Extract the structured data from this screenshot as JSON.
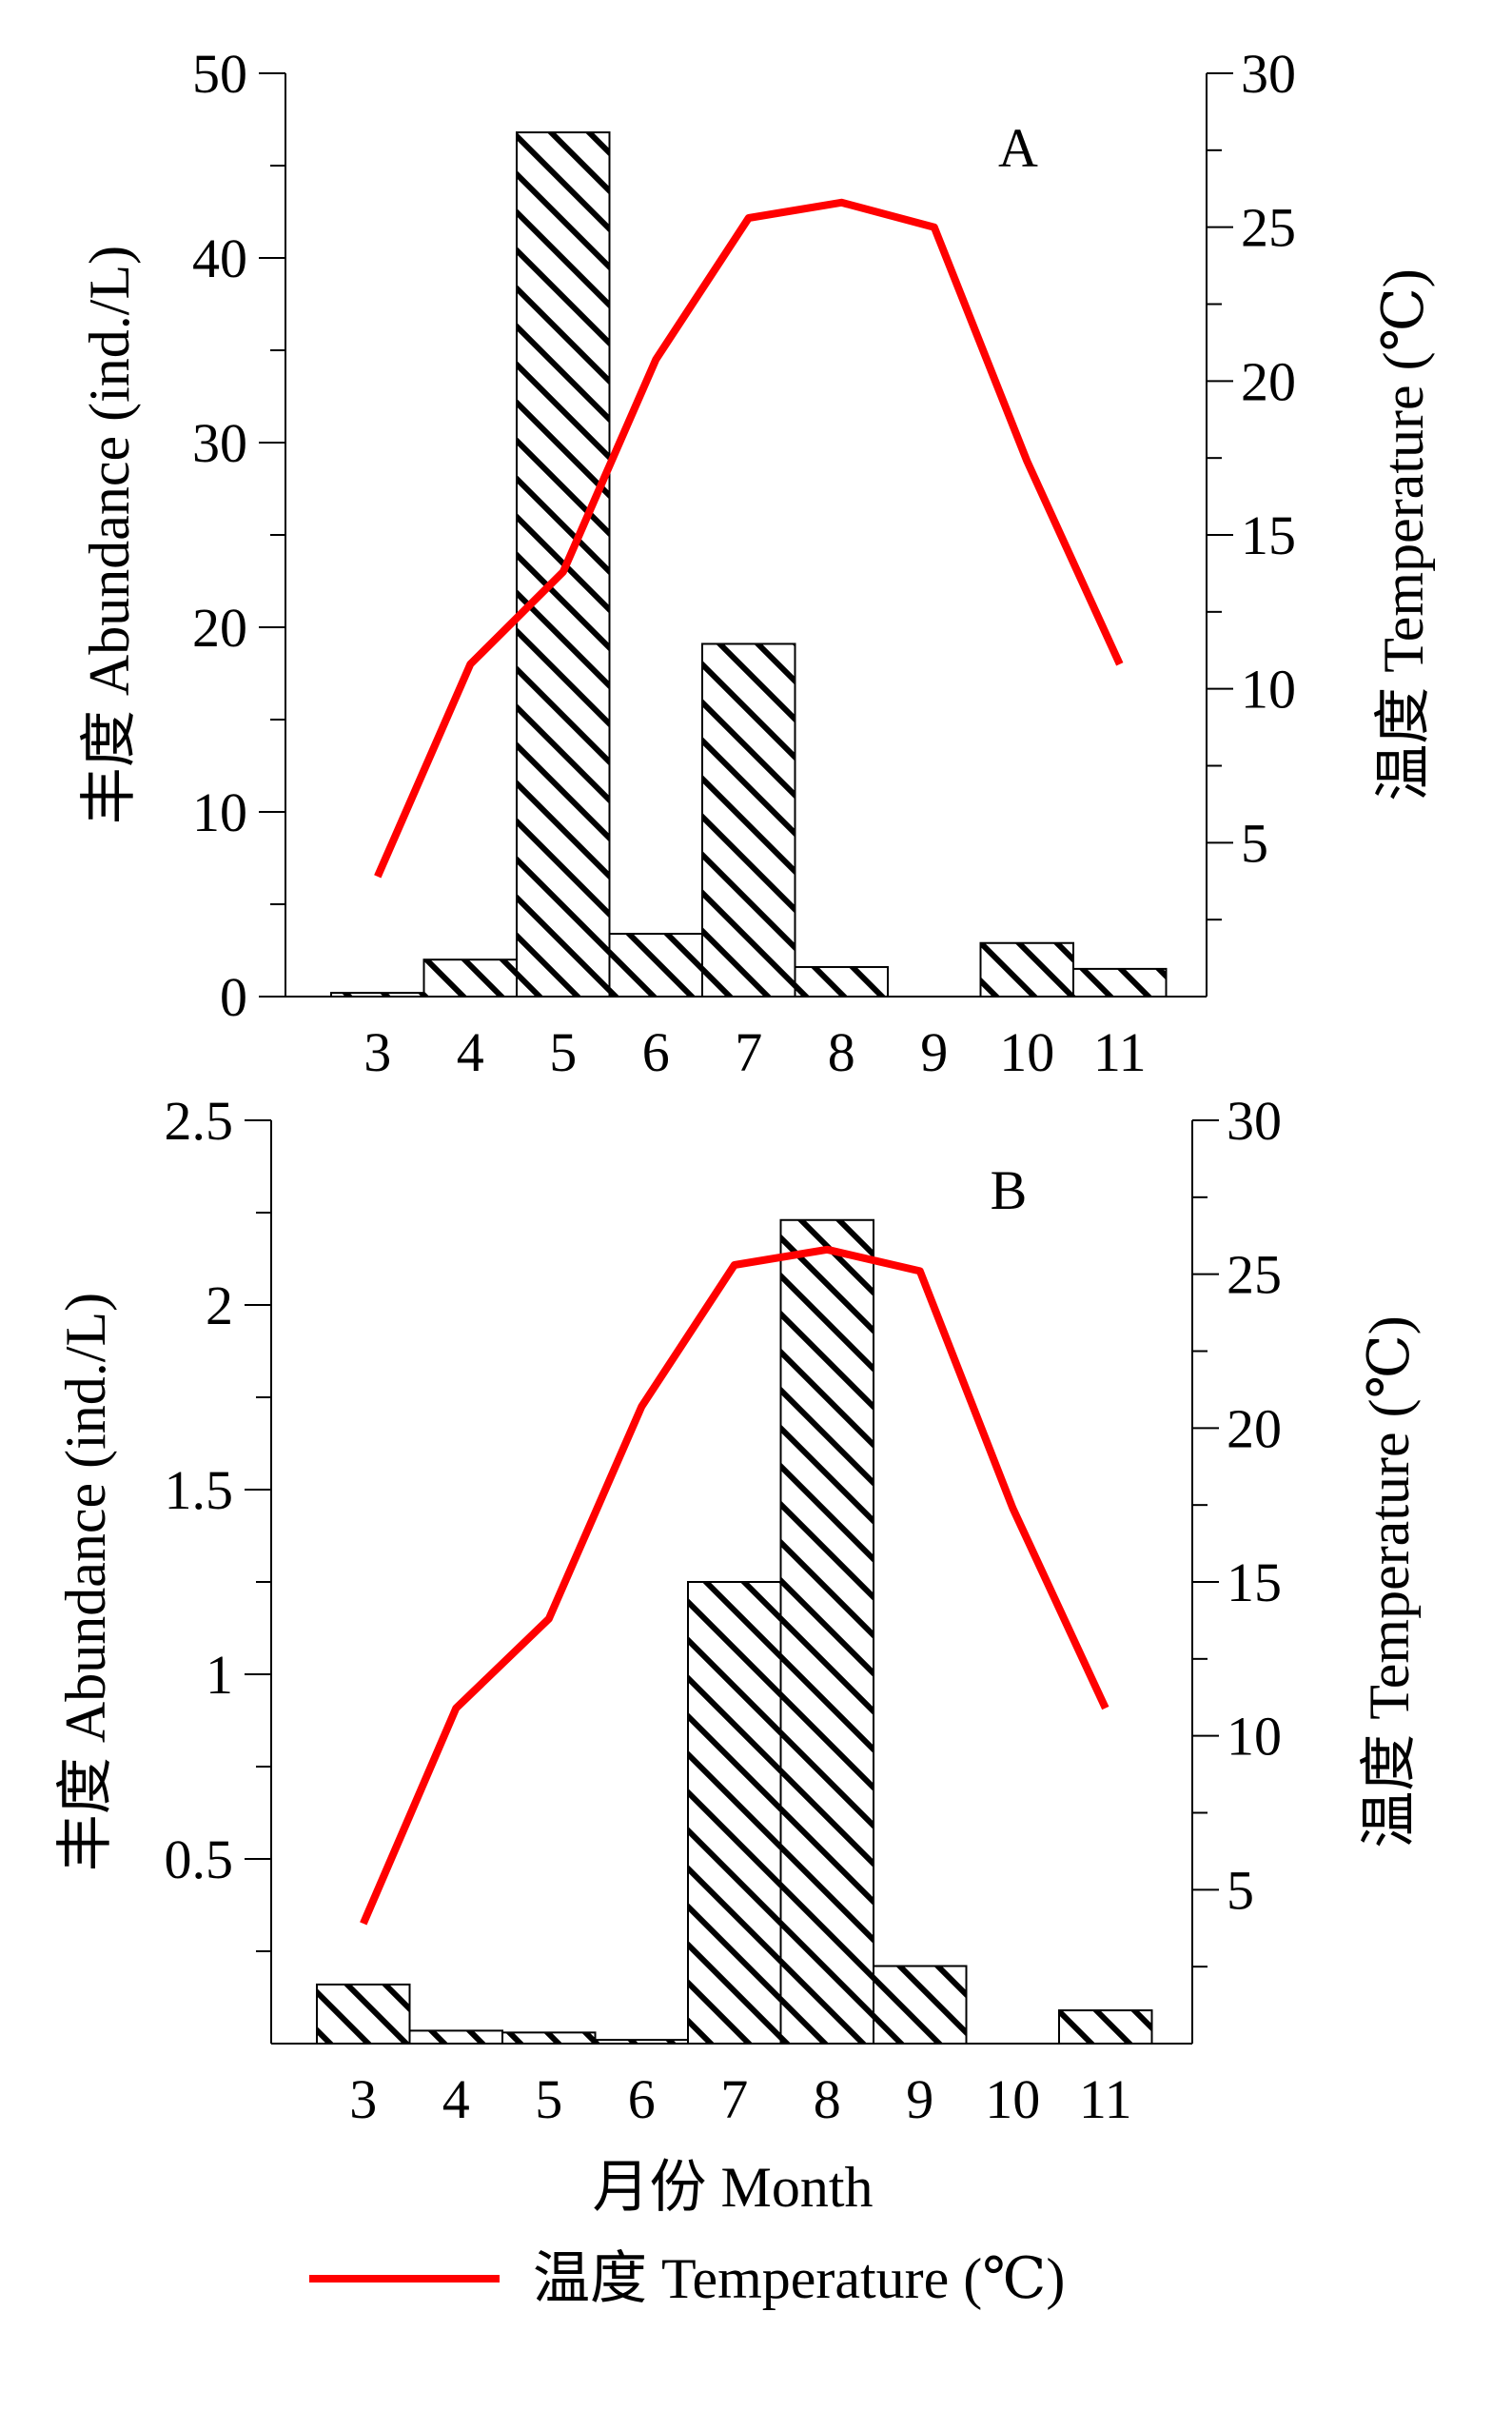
{
  "chart_data": [
    {
      "type": "bar",
      "panel_label": "A",
      "categories": [
        "3",
        "4",
        "5",
        "6",
        "7",
        "8",
        "9",
        "10",
        "11"
      ],
      "series": [
        {
          "values": [
            0.2,
            2.0,
            46.8,
            3.4,
            19.1,
            1.6,
            0.0,
            2.9,
            1.5
          ]
        }
      ],
      "line_series": [
        {
          "name": "温度 Temperature (℃)",
          "values": [
            3.9,
            10.8,
            13.8,
            20.7,
            25.3,
            25.8,
            25.0,
            17.4,
            10.8
          ],
          "color": "#ff0000"
        }
      ],
      "ylabel": "丰度 Abundance (ind./L)",
      "y2label": "温度 Temperature (℃)",
      "ylim": [
        0,
        50
      ],
      "yticks": [
        "0",
        "10",
        "20",
        "30",
        "40",
        "50"
      ],
      "y2lim": [
        0,
        30
      ],
      "y2ticks": [
        "5",
        "10",
        "15",
        "20",
        "25",
        "30"
      ]
    },
    {
      "type": "bar",
      "panel_label": "B",
      "categories": [
        "3",
        "4",
        "5",
        "6",
        "7",
        "8",
        "9",
        "10",
        "11"
      ],
      "series": [
        {
          "values": [
            0.16,
            0.035,
            0.03,
            0.01,
            1.25,
            2.23,
            0.21,
            0.0,
            0.09
          ]
        }
      ],
      "line_series": [
        {
          "name": "温度 Temperature (℃)",
          "values": [
            3.9,
            10.9,
            13.8,
            20.7,
            25.3,
            25.8,
            25.1,
            17.4,
            10.9
          ],
          "color": "#ff0000"
        }
      ],
      "xlabel": "月份 Month",
      "ylabel": "丰度 Abundance (ind./L)",
      "y2label": "温度 Temperature (℃)",
      "ylim": [
        0,
        2.5
      ],
      "yticks": [
        "0.5",
        "1",
        "1.5",
        "2",
        "2.5"
      ],
      "y2lim": [
        0,
        30
      ],
      "y2ticks": [
        "5",
        "10",
        "15",
        "20",
        "25",
        "30"
      ]
    }
  ],
  "legend": {
    "label": "温度 Temperature (℃)",
    "color": "#ff0000",
    "placement": "bottom"
  }
}
